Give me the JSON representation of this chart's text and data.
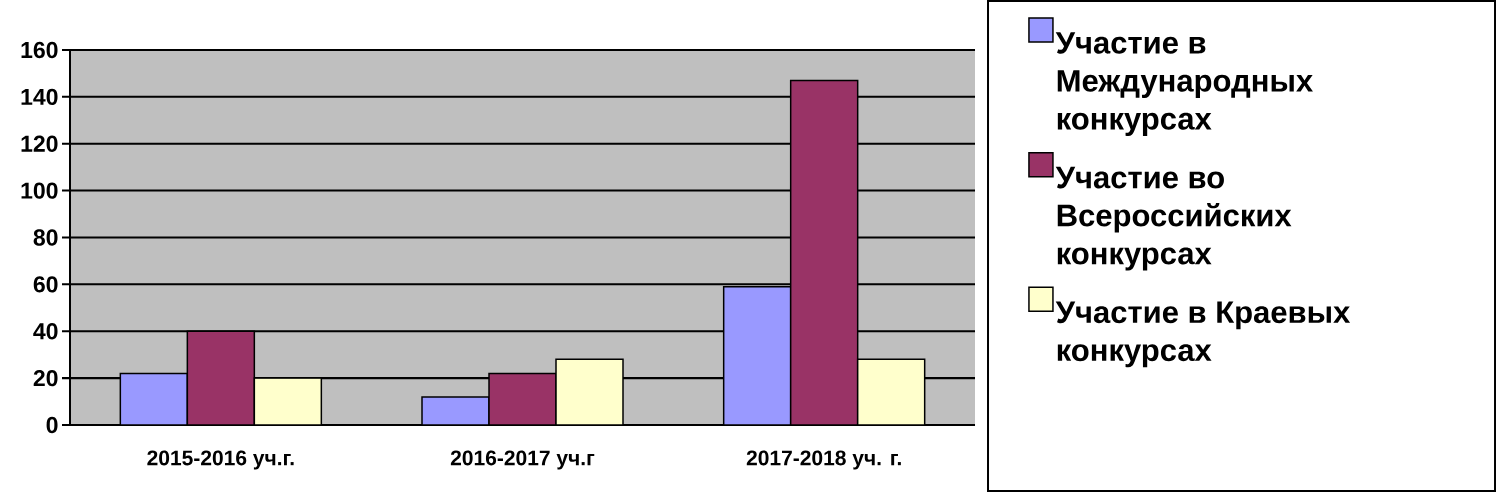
{
  "chart_data": {
    "type": "bar",
    "categories": [
      "2015-2016 уч.г.",
      "2016-2017 уч.г",
      "2017-2018 уч. г."
    ],
    "series": [
      {
        "name": "Участие в Международных конкурсах",
        "color": "#9999ff",
        "values": [
          22,
          12,
          59
        ]
      },
      {
        "name": "Участие во Всероссийских конкурсах",
        "color": "#993366",
        "values": [
          40,
          22,
          147
        ]
      },
      {
        "name": "Участие в Краевых конкурсах",
        "color": "#ffffcc",
        "values": [
          20,
          28,
          28
        ]
      }
    ],
    "ylim": [
      0,
      160
    ],
    "yticks": [
      0,
      20,
      40,
      60,
      80,
      100,
      120,
      140,
      160
    ],
    "grid": "y",
    "legend": "right"
  }
}
